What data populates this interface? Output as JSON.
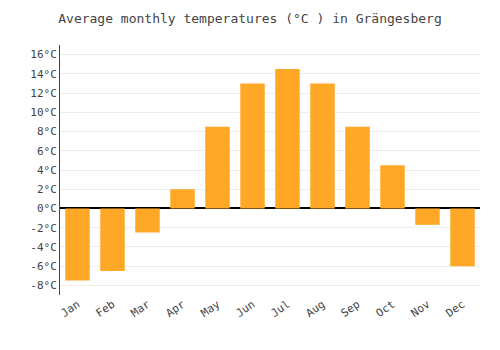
{
  "chart_data": {
    "type": "bar",
    "title": "Average monthly temperatures (°C ) in Grängesberg",
    "categories": [
      "Jan",
      "Feb",
      "Mar",
      "Apr",
      "May",
      "Jun",
      "Jul",
      "Aug",
      "Sep",
      "Oct",
      "Nov",
      "Dec"
    ],
    "values": [
      -7.5,
      -6.5,
      -2.5,
      2.0,
      8.5,
      13.0,
      14.5,
      13.0,
      8.5,
      4.5,
      -1.7,
      -6.0
    ],
    "color": "#FFA726",
    "ylim": [
      -9,
      17
    ],
    "yticks": [
      {
        "value": -8,
        "label": "-8°C"
      },
      {
        "value": -6,
        "label": "-6°C"
      },
      {
        "value": -4,
        "label": "-4°C"
      },
      {
        "value": -2,
        "label": "-2°C"
      },
      {
        "value": 0,
        "label": "0°C"
      },
      {
        "value": 2,
        "label": "2°C"
      },
      {
        "value": 4,
        "label": "4°C"
      },
      {
        "value": 6,
        "label": "6°C"
      },
      {
        "value": 8,
        "label": "8°C"
      },
      {
        "value": 10,
        "label": "10°C"
      },
      {
        "value": 12,
        "label": "12°C"
      },
      {
        "value": 14,
        "label": "14°C"
      },
      {
        "value": 16,
        "label": "16°C"
      }
    ],
    "grid": true
  }
}
